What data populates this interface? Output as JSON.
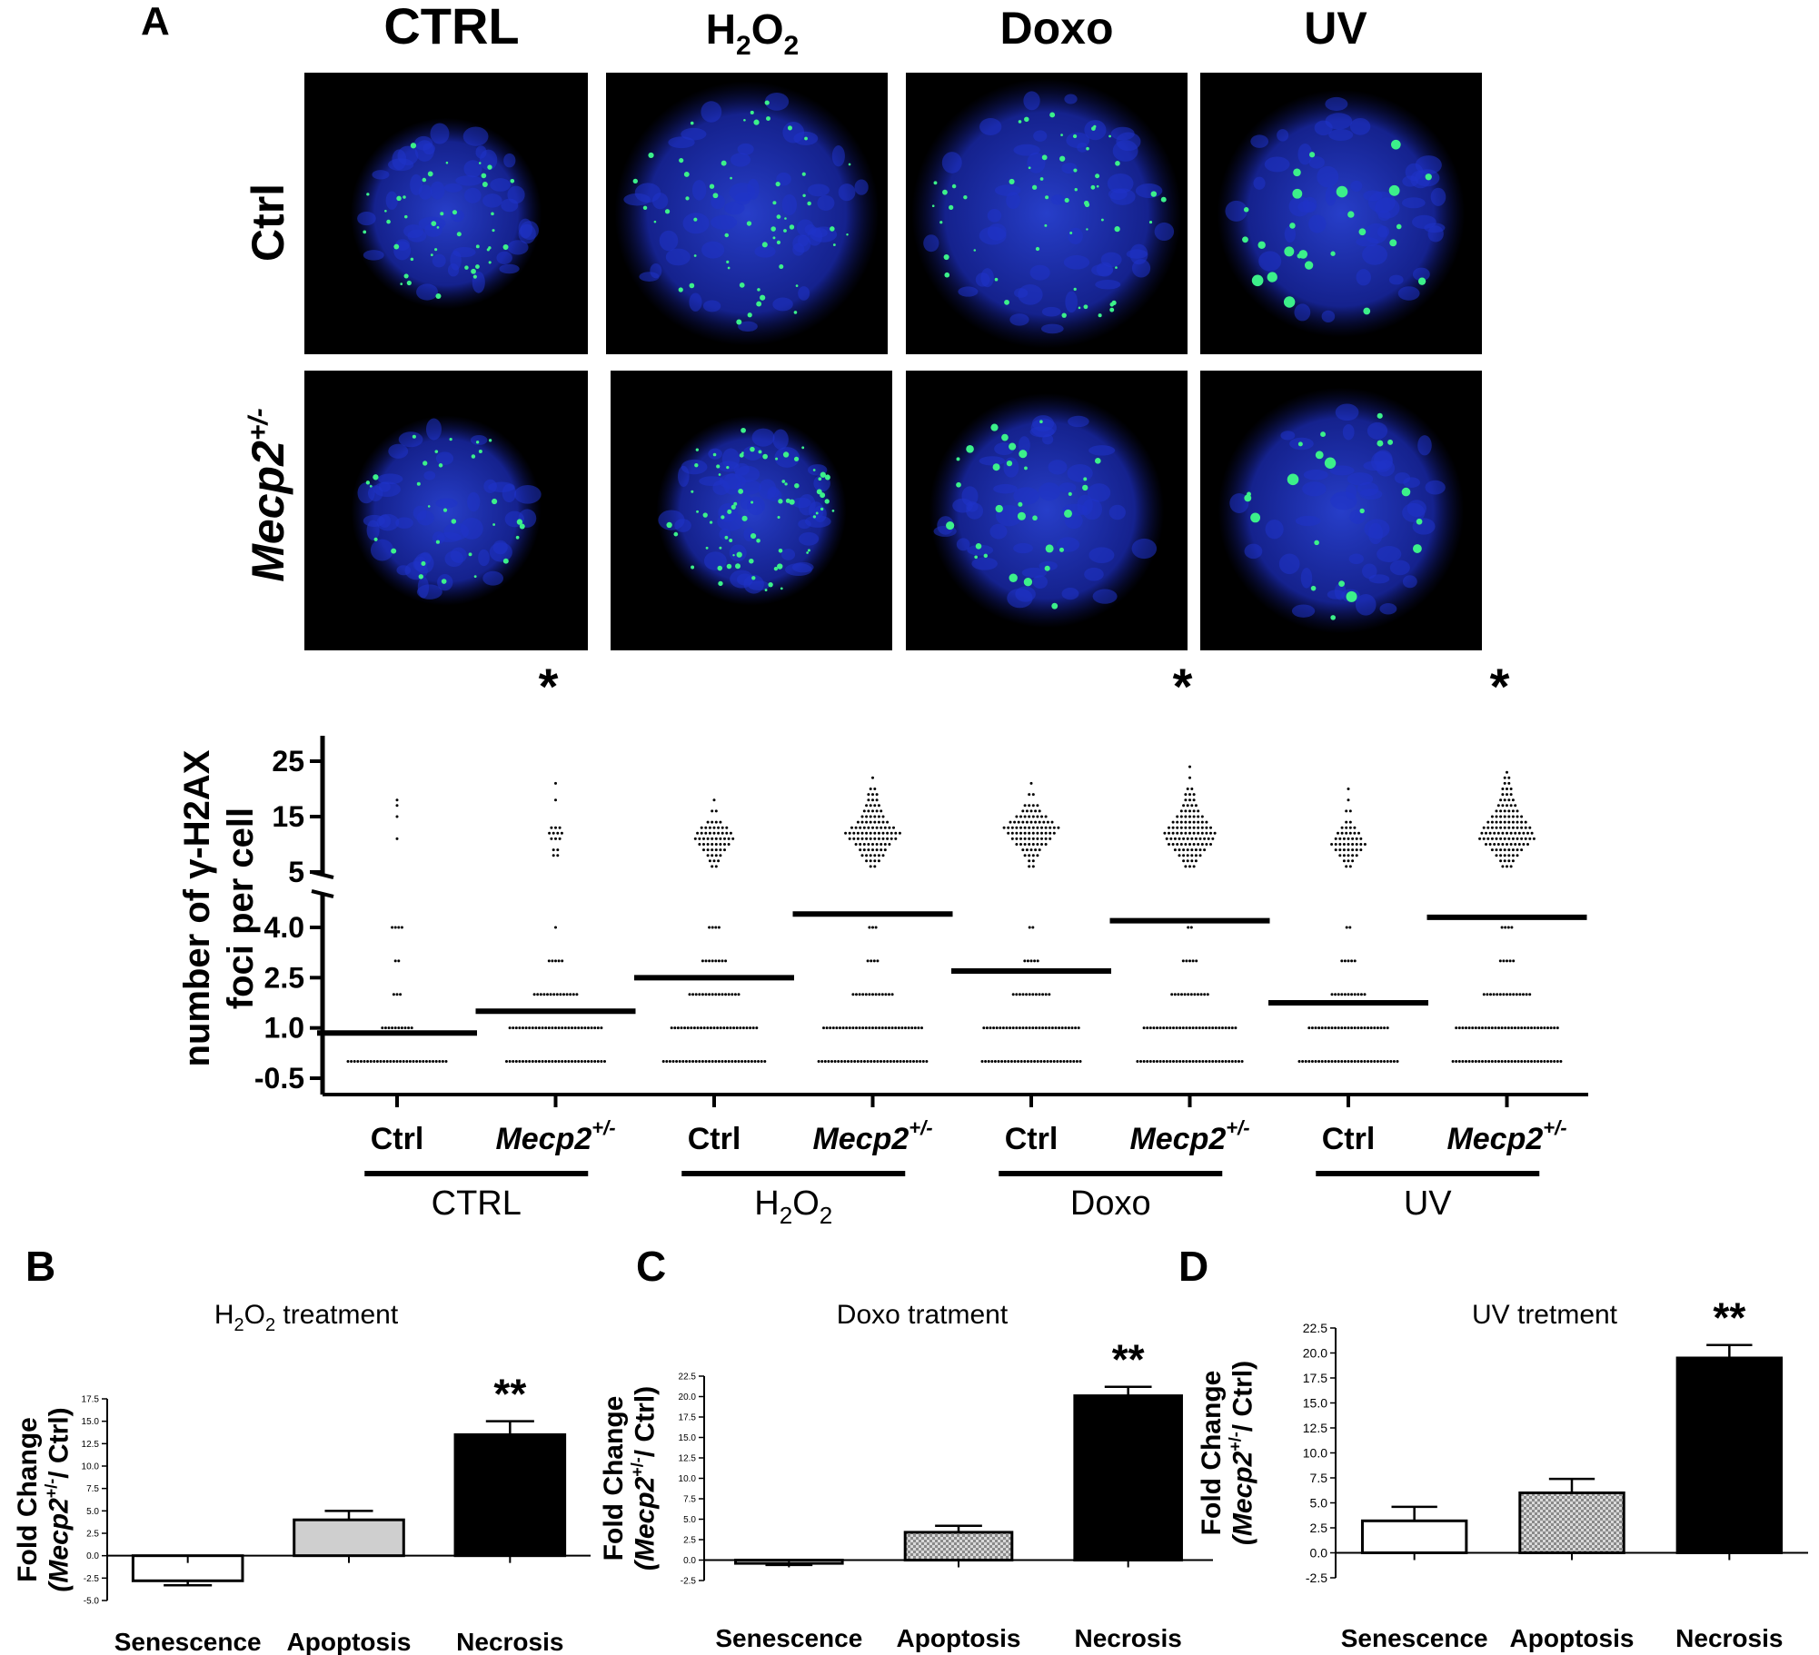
{
  "panel_a": {
    "letter": "A",
    "col_headers": [
      {
        "base": "CTRL",
        "sub1": "",
        "mid": "",
        "sub2": "",
        "color": "#000000"
      },
      {
        "base": "H",
        "sub1": "2",
        "mid": "O",
        "sub2": "2",
        "color": "#000000"
      },
      {
        "base": "Doxo",
        "sub1": "",
        "mid": "",
        "sub2": "",
        "color": "#000000"
      },
      {
        "base": "UV",
        "sub1": "",
        "mid": "",
        "sub2": "",
        "color": "#1e3d13"
      }
    ],
    "row_labels": [
      {
        "base": "Ctrl",
        "sup": ""
      },
      {
        "base": "Mecp2",
        "sup": "+/-"
      }
    ],
    "image_colors": {
      "background": "#000000",
      "nuclei": "#1f33c8",
      "foci": "#3cf08a"
    }
  },
  "colors": {
    "text": "#000000",
    "uv_header": "#1e3d13",
    "bar_gray": "#cfcfcf",
    "bar_check": "#9a9a9a",
    "bar_black": "#000000",
    "bar_white": "#ffffff"
  },
  "chart_data": [
    {
      "id": "A-scatter",
      "type": "scatter",
      "ylabel_line1": "number of γ-H2AX",
      "ylabel_line2": "foci per cell",
      "broken_axis": true,
      "lower_ticks": [
        "-0.5",
        "1.0",
        "2.5",
        "4.0"
      ],
      "upper_ticks": [
        "5",
        "15",
        "25"
      ],
      "categories": [
        {
          "base": "Ctrl",
          "sup": "",
          "italic": false
        },
        {
          "base": "Mecp2",
          "sup": "+/-",
          "italic": true
        },
        {
          "base": "Ctrl",
          "sup": "",
          "italic": false
        },
        {
          "base": "Mecp2",
          "sup": "+/-",
          "italic": true
        },
        {
          "base": "Ctrl",
          "sup": "",
          "italic": false
        },
        {
          "base": "Mecp2",
          "sup": "+/-",
          "italic": true
        },
        {
          "base": "Ctrl",
          "sup": "",
          "italic": false
        },
        {
          "base": "Mecp2",
          "sup": "+/-",
          "italic": true
        }
      ],
      "groups": [
        {
          "base": "CTRL",
          "sub1": "",
          "mid": "",
          "sub2": ""
        },
        {
          "base": "H",
          "sub1": "2",
          "mid": "O",
          "sub2": "2"
        },
        {
          "base": "Doxo",
          "sub1": "",
          "mid": "",
          "sub2": ""
        },
        {
          "base": "UV",
          "sub1": "",
          "mid": "",
          "sub2": ""
        }
      ],
      "means": [
        0.85,
        1.5,
        2.5,
        4.4,
        2.7,
        4.2,
        1.75,
        4.3
      ],
      "significance": [
        "",
        "*",
        "",
        "",
        "",
        "*",
        "",
        "*"
      ],
      "points": [
        [
          [
            0,
            31
          ],
          [
            1,
            10
          ],
          [
            2,
            3
          ],
          [
            3,
            2
          ],
          [
            4,
            4
          ],
          [
            11,
            1
          ],
          [
            15,
            1
          ],
          [
            17,
            1
          ],
          [
            18,
            1
          ]
        ],
        [
          [
            0,
            31
          ],
          [
            1,
            29
          ],
          [
            2,
            14
          ],
          [
            3,
            5
          ],
          [
            4,
            1
          ],
          [
            8,
            2
          ],
          [
            9,
            2
          ],
          [
            11,
            3
          ],
          [
            12,
            4
          ],
          [
            13,
            3
          ],
          [
            18,
            1
          ],
          [
            21,
            1
          ]
        ],
        [
          [
            0,
            32
          ],
          [
            1,
            27
          ],
          [
            2,
            16
          ],
          [
            3,
            8
          ],
          [
            4,
            4
          ],
          [
            6,
            2
          ],
          [
            7,
            3
          ],
          [
            8,
            4
          ],
          [
            9,
            6
          ],
          [
            10,
            8
          ],
          [
            11,
            10
          ],
          [
            12,
            9
          ],
          [
            13,
            7
          ],
          [
            14,
            4
          ],
          [
            16,
            2
          ],
          [
            18,
            1
          ]
        ],
        [
          [
            0,
            34
          ],
          [
            1,
            31
          ],
          [
            2,
            13
          ],
          [
            3,
            4
          ],
          [
            4,
            3
          ],
          [
            6,
            2
          ],
          [
            7,
            4
          ],
          [
            8,
            6
          ],
          [
            9,
            7
          ],
          [
            10,
            9
          ],
          [
            11,
            12
          ],
          [
            12,
            14
          ],
          [
            13,
            11
          ],
          [
            14,
            8
          ],
          [
            15,
            6
          ],
          [
            16,
            5
          ],
          [
            17,
            4
          ],
          [
            18,
            3
          ],
          [
            19,
            3
          ],
          [
            20,
            2
          ],
          [
            22,
            1
          ]
        ],
        [
          [
            0,
            31
          ],
          [
            1,
            30
          ],
          [
            2,
            12
          ],
          [
            3,
            5
          ],
          [
            4,
            2
          ],
          [
            6,
            2
          ],
          [
            7,
            2
          ],
          [
            8,
            4
          ],
          [
            9,
            5
          ],
          [
            10,
            8
          ],
          [
            11,
            10
          ],
          [
            12,
            12
          ],
          [
            13,
            14
          ],
          [
            14,
            11
          ],
          [
            15,
            8
          ],
          [
            16,
            5
          ],
          [
            17,
            4
          ],
          [
            19,
            2
          ],
          [
            21,
            1
          ]
        ],
        [
          [
            0,
            33
          ],
          [
            1,
            29
          ],
          [
            2,
            12
          ],
          [
            3,
            5
          ],
          [
            4,
            2
          ],
          [
            6,
            3
          ],
          [
            7,
            4
          ],
          [
            8,
            6
          ],
          [
            9,
            8
          ],
          [
            10,
            11
          ],
          [
            11,
            12
          ],
          [
            12,
            13
          ],
          [
            13,
            11
          ],
          [
            14,
            9
          ],
          [
            15,
            7
          ],
          [
            16,
            5
          ],
          [
            17,
            4
          ],
          [
            18,
            3
          ],
          [
            19,
            3
          ],
          [
            20,
            2
          ],
          [
            22,
            1
          ],
          [
            24,
            1
          ]
        ],
        [
          [
            0,
            31
          ],
          [
            1,
            25
          ],
          [
            2,
            11
          ],
          [
            3,
            5
          ],
          [
            4,
            2
          ],
          [
            6,
            2
          ],
          [
            7,
            3
          ],
          [
            8,
            5
          ],
          [
            9,
            7
          ],
          [
            10,
            9
          ],
          [
            11,
            7
          ],
          [
            12,
            6
          ],
          [
            13,
            4
          ],
          [
            14,
            2
          ],
          [
            16,
            2
          ],
          [
            18,
            1
          ],
          [
            20,
            1
          ]
        ],
        [
          [
            0,
            34
          ],
          [
            1,
            32
          ],
          [
            2,
            15
          ],
          [
            3,
            5
          ],
          [
            4,
            4
          ],
          [
            6,
            3
          ],
          [
            7,
            4
          ],
          [
            8,
            6
          ],
          [
            9,
            8
          ],
          [
            10,
            11
          ],
          [
            11,
            14
          ],
          [
            12,
            13
          ],
          [
            13,
            12
          ],
          [
            14,
            10
          ],
          [
            15,
            8
          ],
          [
            16,
            6
          ],
          [
            17,
            5
          ],
          [
            18,
            4
          ],
          [
            19,
            3
          ],
          [
            20,
            3
          ],
          [
            21,
            2
          ],
          [
            22,
            2
          ],
          [
            23,
            1
          ]
        ]
      ]
    },
    {
      "id": "B",
      "letter": "B",
      "type": "bar",
      "title_parts": {
        "base": "H",
        "sub1": "2",
        "mid": "O",
        "sub2": "2",
        "rest": " treatment"
      },
      "ylabel_line1": "Fold Change",
      "ylabel_line2_base": "(Mecp2",
      "ylabel_line2_sup": "+/-",
      "ylabel_line2_rest": "/ Ctrl)",
      "categories": [
        "Senescence",
        "Apoptosis",
        "Necrosis"
      ],
      "values": [
        -2.8,
        4.0,
        13.5
      ],
      "errors": [
        0.5,
        1.0,
        1.5
      ],
      "fills": [
        "white",
        "gray",
        "black"
      ],
      "significance": [
        "",
        "",
        "**"
      ],
      "ylim": [
        -5.0,
        17.5
      ],
      "ticks": [
        "-5.0",
        "-2.5",
        "0.0",
        "2.5",
        "5.0",
        "7.5",
        "10.0",
        "12.5",
        "15.0",
        "17.5"
      ]
    },
    {
      "id": "C",
      "letter": "C",
      "type": "bar",
      "title_parts": {
        "base": "Doxo tratment",
        "sub1": "",
        "mid": "",
        "sub2": "",
        "rest": ""
      },
      "ylabel_line1": "Fold Change",
      "ylabel_line2_base": "(Mecp2",
      "ylabel_line2_sup": "+/-",
      "ylabel_line2_rest": "/ Ctrl)",
      "categories": [
        "Senescence",
        "Apoptosis",
        "Necrosis"
      ],
      "values": [
        -0.4,
        3.4,
        20.1
      ],
      "errors": [
        0.2,
        0.8,
        1.1
      ],
      "fills": [
        "white",
        "check",
        "black"
      ],
      "significance": [
        "",
        "",
        "**"
      ],
      "ylim": [
        -2.5,
        22.5
      ],
      "ticks": [
        "-2.5",
        "0.0",
        "2.5",
        "5.0",
        "7.5",
        "10.0",
        "12.5",
        "15.0",
        "17.5",
        "20.0",
        "22.5"
      ]
    },
    {
      "id": "D",
      "letter": "D",
      "type": "bar",
      "title_parts": {
        "base": "UV tretment",
        "sub1": "",
        "mid": "",
        "sub2": "",
        "rest": ""
      },
      "ylabel_line1": "Fold Change",
      "ylabel_line2_base": "(Mecp2",
      "ylabel_line2_sup": "+/-",
      "ylabel_line2_rest": "/ Ctrl)",
      "categories": [
        "Senescence",
        "Apoptosis",
        "Necrosis"
      ],
      "values": [
        3.2,
        6.0,
        19.5
      ],
      "errors": [
        1.4,
        1.4,
        1.3
      ],
      "fills": [
        "white",
        "check",
        "black"
      ],
      "significance": [
        "",
        "",
        "**"
      ],
      "ylim": [
        -2.5,
        22.5
      ],
      "ticks": [
        "-2.5",
        "0.0",
        "2.5",
        "5.0",
        "7.5",
        "10.0",
        "12.5",
        "15.0",
        "17.5",
        "20.0",
        "22.5"
      ]
    }
  ]
}
